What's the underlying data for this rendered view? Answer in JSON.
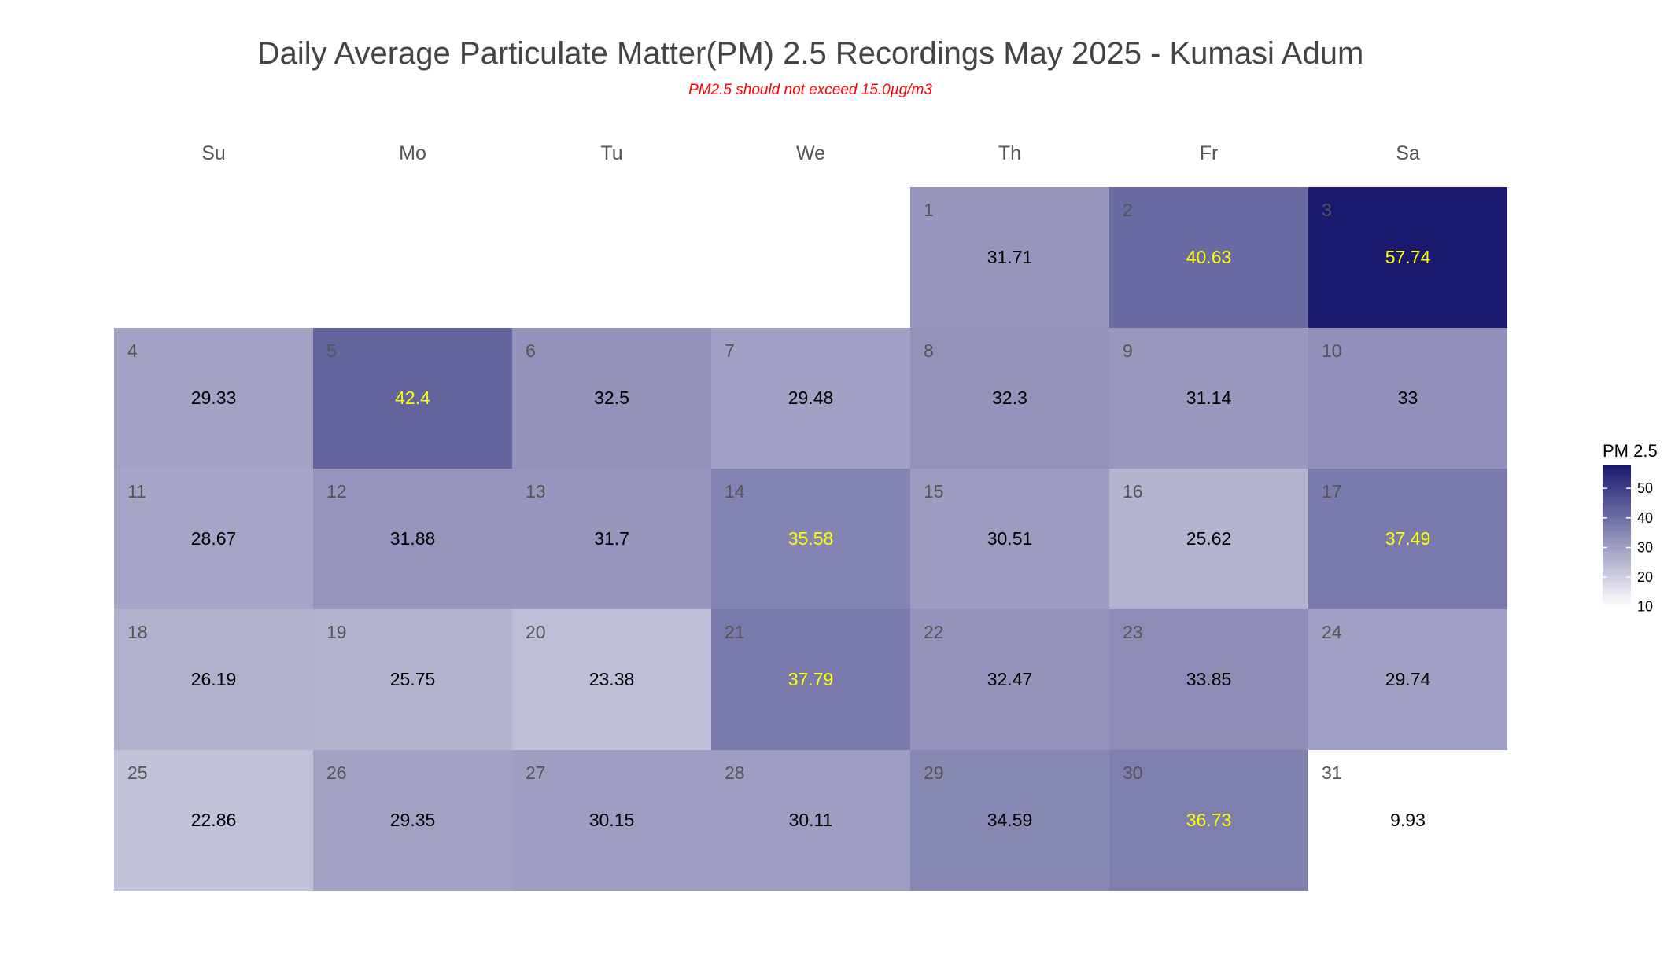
{
  "chart_data": {
    "type": "heatmap",
    "subtype": "calendar",
    "title": "Daily Average Particulate Matter(PM) 2.5 Recordings May 2025 -  Kumasi Adum",
    "subtitle": "PM2.5 should not exceed 15.0µg/m3",
    "month": "May 2025",
    "first_weekday_index": 4,
    "weekdays": [
      "Su",
      "Mo",
      "Tu",
      "We",
      "Th",
      "Fr",
      "Sa"
    ],
    "days": [
      1,
      2,
      3,
      4,
      5,
      6,
      7,
      8,
      9,
      10,
      11,
      12,
      13,
      14,
      15,
      16,
      17,
      18,
      19,
      20,
      21,
      22,
      23,
      24,
      25,
      26,
      27,
      28,
      29,
      30,
      31
    ],
    "values": [
      31.71,
      40.63,
      57.74,
      29.33,
      42.4,
      32.5,
      29.48,
      32.3,
      31.14,
      33,
      28.67,
      31.88,
      31.7,
      35.58,
      30.51,
      25.62,
      37.49,
      26.19,
      25.75,
      23.38,
      37.79,
      32.47,
      33.85,
      29.74,
      22.86,
      29.35,
      30.15,
      30.11,
      34.59,
      36.73,
      9.93
    ],
    "highlight_threshold": 35,
    "value_label_colors": {
      "normal": "#000000",
      "high": "#ffff00"
    },
    "legend": {
      "title": "PM 2.5",
      "ticks": [
        10,
        20,
        30,
        40,
        50
      ],
      "range": [
        9.93,
        57.74
      ],
      "low_color": "#ffffff",
      "high_color": "#191970",
      "placement": "right"
    }
  }
}
